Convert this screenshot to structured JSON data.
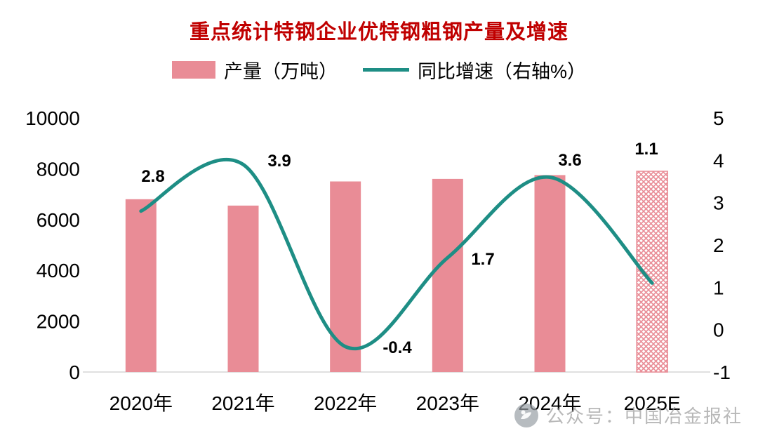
{
  "title": "重点统计特钢企业优特钢粗钢产量及增速",
  "legend": {
    "bar_label": "产量（万吨）",
    "line_label": "同比增速（右轴%）"
  },
  "watermark": {
    "text": "公众号：中国冶金报社"
  },
  "colors": {
    "bar": "#E98C96",
    "line": "#1E8E85",
    "title": "#C00000",
    "axis_line": "#D6D6D6",
    "text": "#000000",
    "watermark": "#9B9B9B"
  },
  "chart_data": {
    "type": "bar+line",
    "categories": [
      "2020年",
      "2021年",
      "2022年",
      "2023年",
      "2024年",
      "2025E"
    ],
    "series": [
      {
        "name": "产量（万吨）",
        "type": "bar",
        "axis": "left",
        "values": [
          6800,
          6550,
          7500,
          7600,
          7750,
          7900
        ],
        "last_bar_pattern": "crosshatch-forecast"
      },
      {
        "name": "同比增速（右轴%）",
        "type": "line",
        "axis": "right",
        "values": [
          2.8,
          3.9,
          -0.4,
          1.7,
          3.6,
          1.1
        ],
        "point_labels": [
          "2.8",
          "3.9",
          "-0.4",
          "1.7",
          "3.6",
          "1.1"
        ],
        "smooth": true
      }
    ],
    "left_axis": {
      "min": 0,
      "max": 10000,
      "step": 2000,
      "ticks": [
        0,
        2000,
        4000,
        6000,
        8000,
        10000
      ]
    },
    "right_axis": {
      "min": -1,
      "max": 5,
      "step": 1,
      "ticks": [
        -1,
        0,
        1,
        2,
        3,
        4,
        5
      ]
    },
    "grid": false,
    "legend_position": "top"
  }
}
